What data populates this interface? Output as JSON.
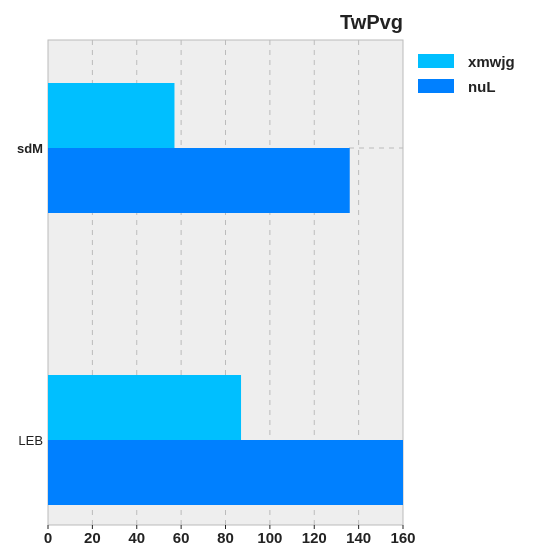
{
  "chart_data": {
    "type": "bar",
    "orientation": "horizontal",
    "title": "TwPvg",
    "categories": [
      "sdM",
      "LEB"
    ],
    "series": [
      {
        "name": "xmwjg",
        "color": "#00bfff",
        "values": [
          57,
          87
        ]
      },
      {
        "name": "nuL",
        "color": "#0080ff",
        "values": [
          136,
          160
        ]
      }
    ],
    "xlim": [
      0,
      160
    ],
    "xticks": [
      0,
      20,
      40,
      60,
      80,
      100,
      120,
      140,
      160
    ],
    "grid": true,
    "legend_position": "outside-right-top",
    "colors": {
      "plot_background": "#eeeeee",
      "grid": "#bbbbbb",
      "frame": "#bbbbbb"
    }
  }
}
